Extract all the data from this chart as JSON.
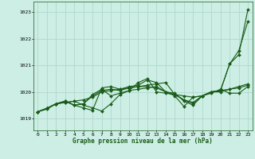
{
  "title": "Graphe pression niveau de la mer (hPa)",
  "background_color": "#cceee4",
  "grid_color": "#aad4c8",
  "line_color": "#1a5c1a",
  "xlim": [
    -0.5,
    23.5
  ],
  "ylim": [
    1018.55,
    1023.4
  ],
  "yticks": [
    1019,
    1020,
    1021,
    1022,
    1023
  ],
  "xticks": [
    0,
    1,
    2,
    3,
    4,
    5,
    6,
    7,
    8,
    9,
    10,
    11,
    12,
    13,
    14,
    15,
    16,
    17,
    18,
    19,
    20,
    21,
    22,
    23
  ],
  "series": [
    {
      "x": [
        0,
        1,
        2,
        3,
        4,
        5,
        6,
        7,
        8,
        9,
        10,
        11,
        12,
        13,
        14,
        15,
        16,
        17,
        18,
        19,
        20,
        21,
        22,
        23
      ],
      "y": [
        1019.25,
        1019.35,
        1019.55,
        1019.6,
        1019.65,
        1019.7,
        1019.8,
        1020.0,
        1020.05,
        1020.1,
        1020.15,
        1020.2,
        1020.25,
        1020.3,
        1020.35,
        1019.9,
        1019.85,
        1019.8,
        1019.85,
        1020.0,
        1020.05,
        1020.1,
        1020.2,
        1020.3
      ]
    },
    {
      "x": [
        0,
        1,
        2,
        3,
        4,
        5,
        6,
        7,
        8,
        9,
        10,
        11,
        12,
        13,
        14,
        15,
        16,
        17,
        18,
        19,
        20,
        21,
        22,
        23
      ],
      "y": [
        1019.25,
        1019.38,
        1019.55,
        1019.65,
        1019.5,
        1019.55,
        1019.9,
        1020.1,
        1019.85,
        1019.95,
        1020.05,
        1020.35,
        1020.5,
        1020.0,
        1019.95,
        1019.9,
        1019.7,
        1019.55,
        1019.85,
        1019.95,
        1020.1,
        1019.95,
        1019.95,
        1020.2
      ]
    },
    {
      "x": [
        0,
        1,
        2,
        3,
        4,
        5,
        6,
        7,
        8,
        9,
        10,
        11,
        12,
        13,
        14,
        15,
        16,
        17,
        18,
        19,
        20,
        21,
        22,
        23
      ],
      "y": [
        1019.25,
        1019.38,
        1019.55,
        1019.65,
        1019.5,
        1019.4,
        1019.3,
        1020.15,
        1020.2,
        1020.1,
        1020.2,
        1020.25,
        1020.45,
        1020.35,
        1020.0,
        1019.95,
        1019.65,
        1019.5,
        1019.85,
        1020.0,
        1020.05,
        1021.05,
        1021.55,
        1022.65
      ]
    },
    {
      "x": [
        0,
        1,
        2,
        3,
        4,
        5,
        6,
        7,
        8,
        9,
        10,
        11,
        12,
        13,
        14,
        15,
        16,
        17,
        18,
        19,
        20,
        21,
        22,
        23
      ],
      "y": [
        1019.25,
        1019.38,
        1019.55,
        1019.65,
        1019.5,
        1019.55,
        1019.85,
        1020.05,
        1020.1,
        1020.05,
        1020.15,
        1020.2,
        1020.2,
        1020.15,
        1020.0,
        1019.85,
        1019.45,
        1019.8,
        1019.85,
        1020.0,
        1020.0,
        1020.1,
        1020.15,
        1020.25
      ]
    },
    {
      "x": [
        0,
        1,
        2,
        3,
        4,
        5,
        6,
        7,
        8,
        9,
        10,
        11,
        12,
        13,
        14,
        15,
        16,
        17,
        18,
        19,
        20,
        21,
        22,
        23
      ],
      "y": [
        1019.25,
        1019.38,
        1019.55,
        1019.6,
        1019.65,
        1019.5,
        1019.4,
        1019.28,
        1019.55,
        1019.9,
        1020.05,
        1020.1,
        1020.15,
        1020.2,
        1020.0,
        1019.9,
        1019.7,
        1019.6,
        1019.85,
        1020.0,
        1020.05,
        1021.05,
        1021.4,
        1023.1
      ]
    }
  ],
  "markersize": 2.0,
  "linewidth": 0.8
}
